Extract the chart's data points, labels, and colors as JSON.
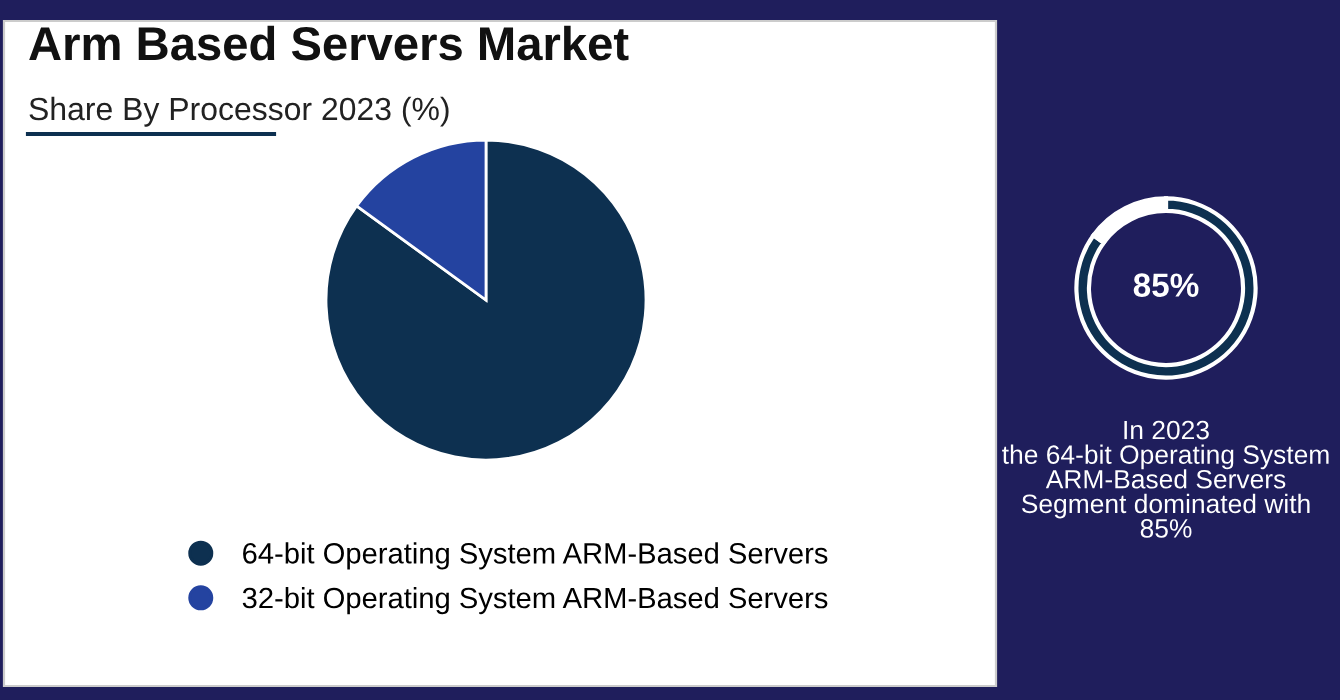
{
  "chart_data": [
    {
      "type": "pie",
      "title": "Arm Based Servers Market",
      "subtitle": "Share By Processor 2023 (%)",
      "categories": [
        "64-bit Operating System ARM-Based Servers",
        "32-bit Operating System ARM-Based Servers"
      ],
      "values": [
        85,
        15
      ],
      "colors": [
        "#0d3050",
        "#2443a0"
      ],
      "legend": "bottom"
    },
    {
      "type": "donut",
      "categories": [
        null,
        null
      ],
      "values": [
        85,
        15
      ],
      "colors": [
        "#0d3050",
        "#ffffff"
      ],
      "annotations": [
        "85%",
        "In 2023\nthe 64-bit Operating System\nARM-Based Servers\nSegment dominated with\n85%"
      ]
    }
  ]
}
